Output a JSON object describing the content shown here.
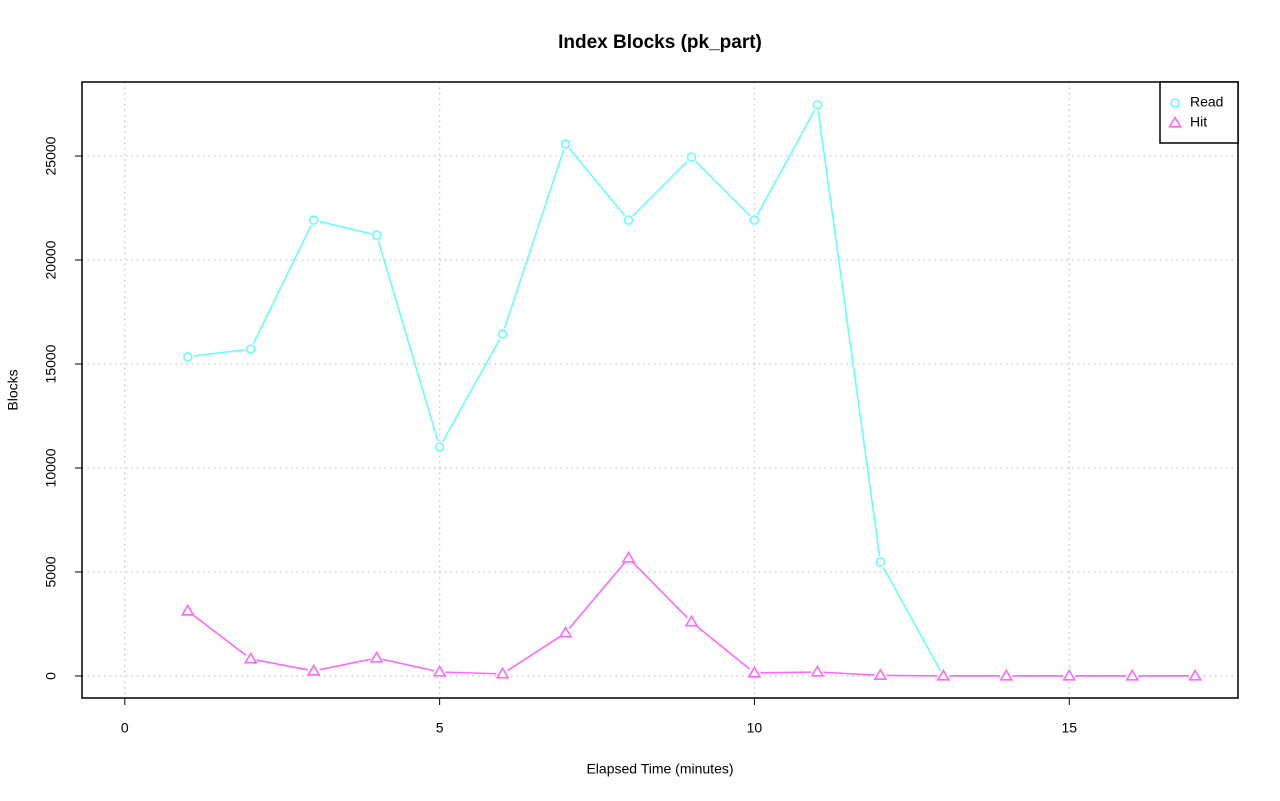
{
  "chart_data": {
    "type": "line",
    "title": "Index Blocks (pk_part)",
    "x_label": "Elapsed Time (minutes)",
    "y_label": "Blocks",
    "x": [
      1,
      2,
      3,
      4,
      5,
      6,
      7,
      8,
      9,
      10,
      11,
      12,
      13,
      14,
      15,
      16,
      17
    ],
    "series": [
      {
        "name": "Read",
        "color": "#66ffff",
        "marker": "circle",
        "values": [
          15350,
          15720,
          21920,
          21200,
          11010,
          16440,
          25580,
          21920,
          24950,
          21920,
          27450,
          5480,
          0,
          0,
          0,
          0,
          0
        ]
      },
      {
        "name": "Hit",
        "color": "#ff66ff",
        "marker": "triangle",
        "values": [
          3125,
          820,
          240,
          865,
          190,
          100,
          2070,
          5670,
          2600,
          145,
          190,
          30,
          0,
          0,
          0,
          0,
          0
        ]
      }
    ],
    "xlim": [
      -0.68,
      17.68
    ],
    "xticks": [
      0,
      5,
      10,
      15
    ],
    "ylim": [
      -1060,
      28560
    ],
    "yticks": [
      0,
      5000,
      10000,
      15000,
      20000,
      25000
    ],
    "grid": true,
    "legend": "top-right"
  }
}
